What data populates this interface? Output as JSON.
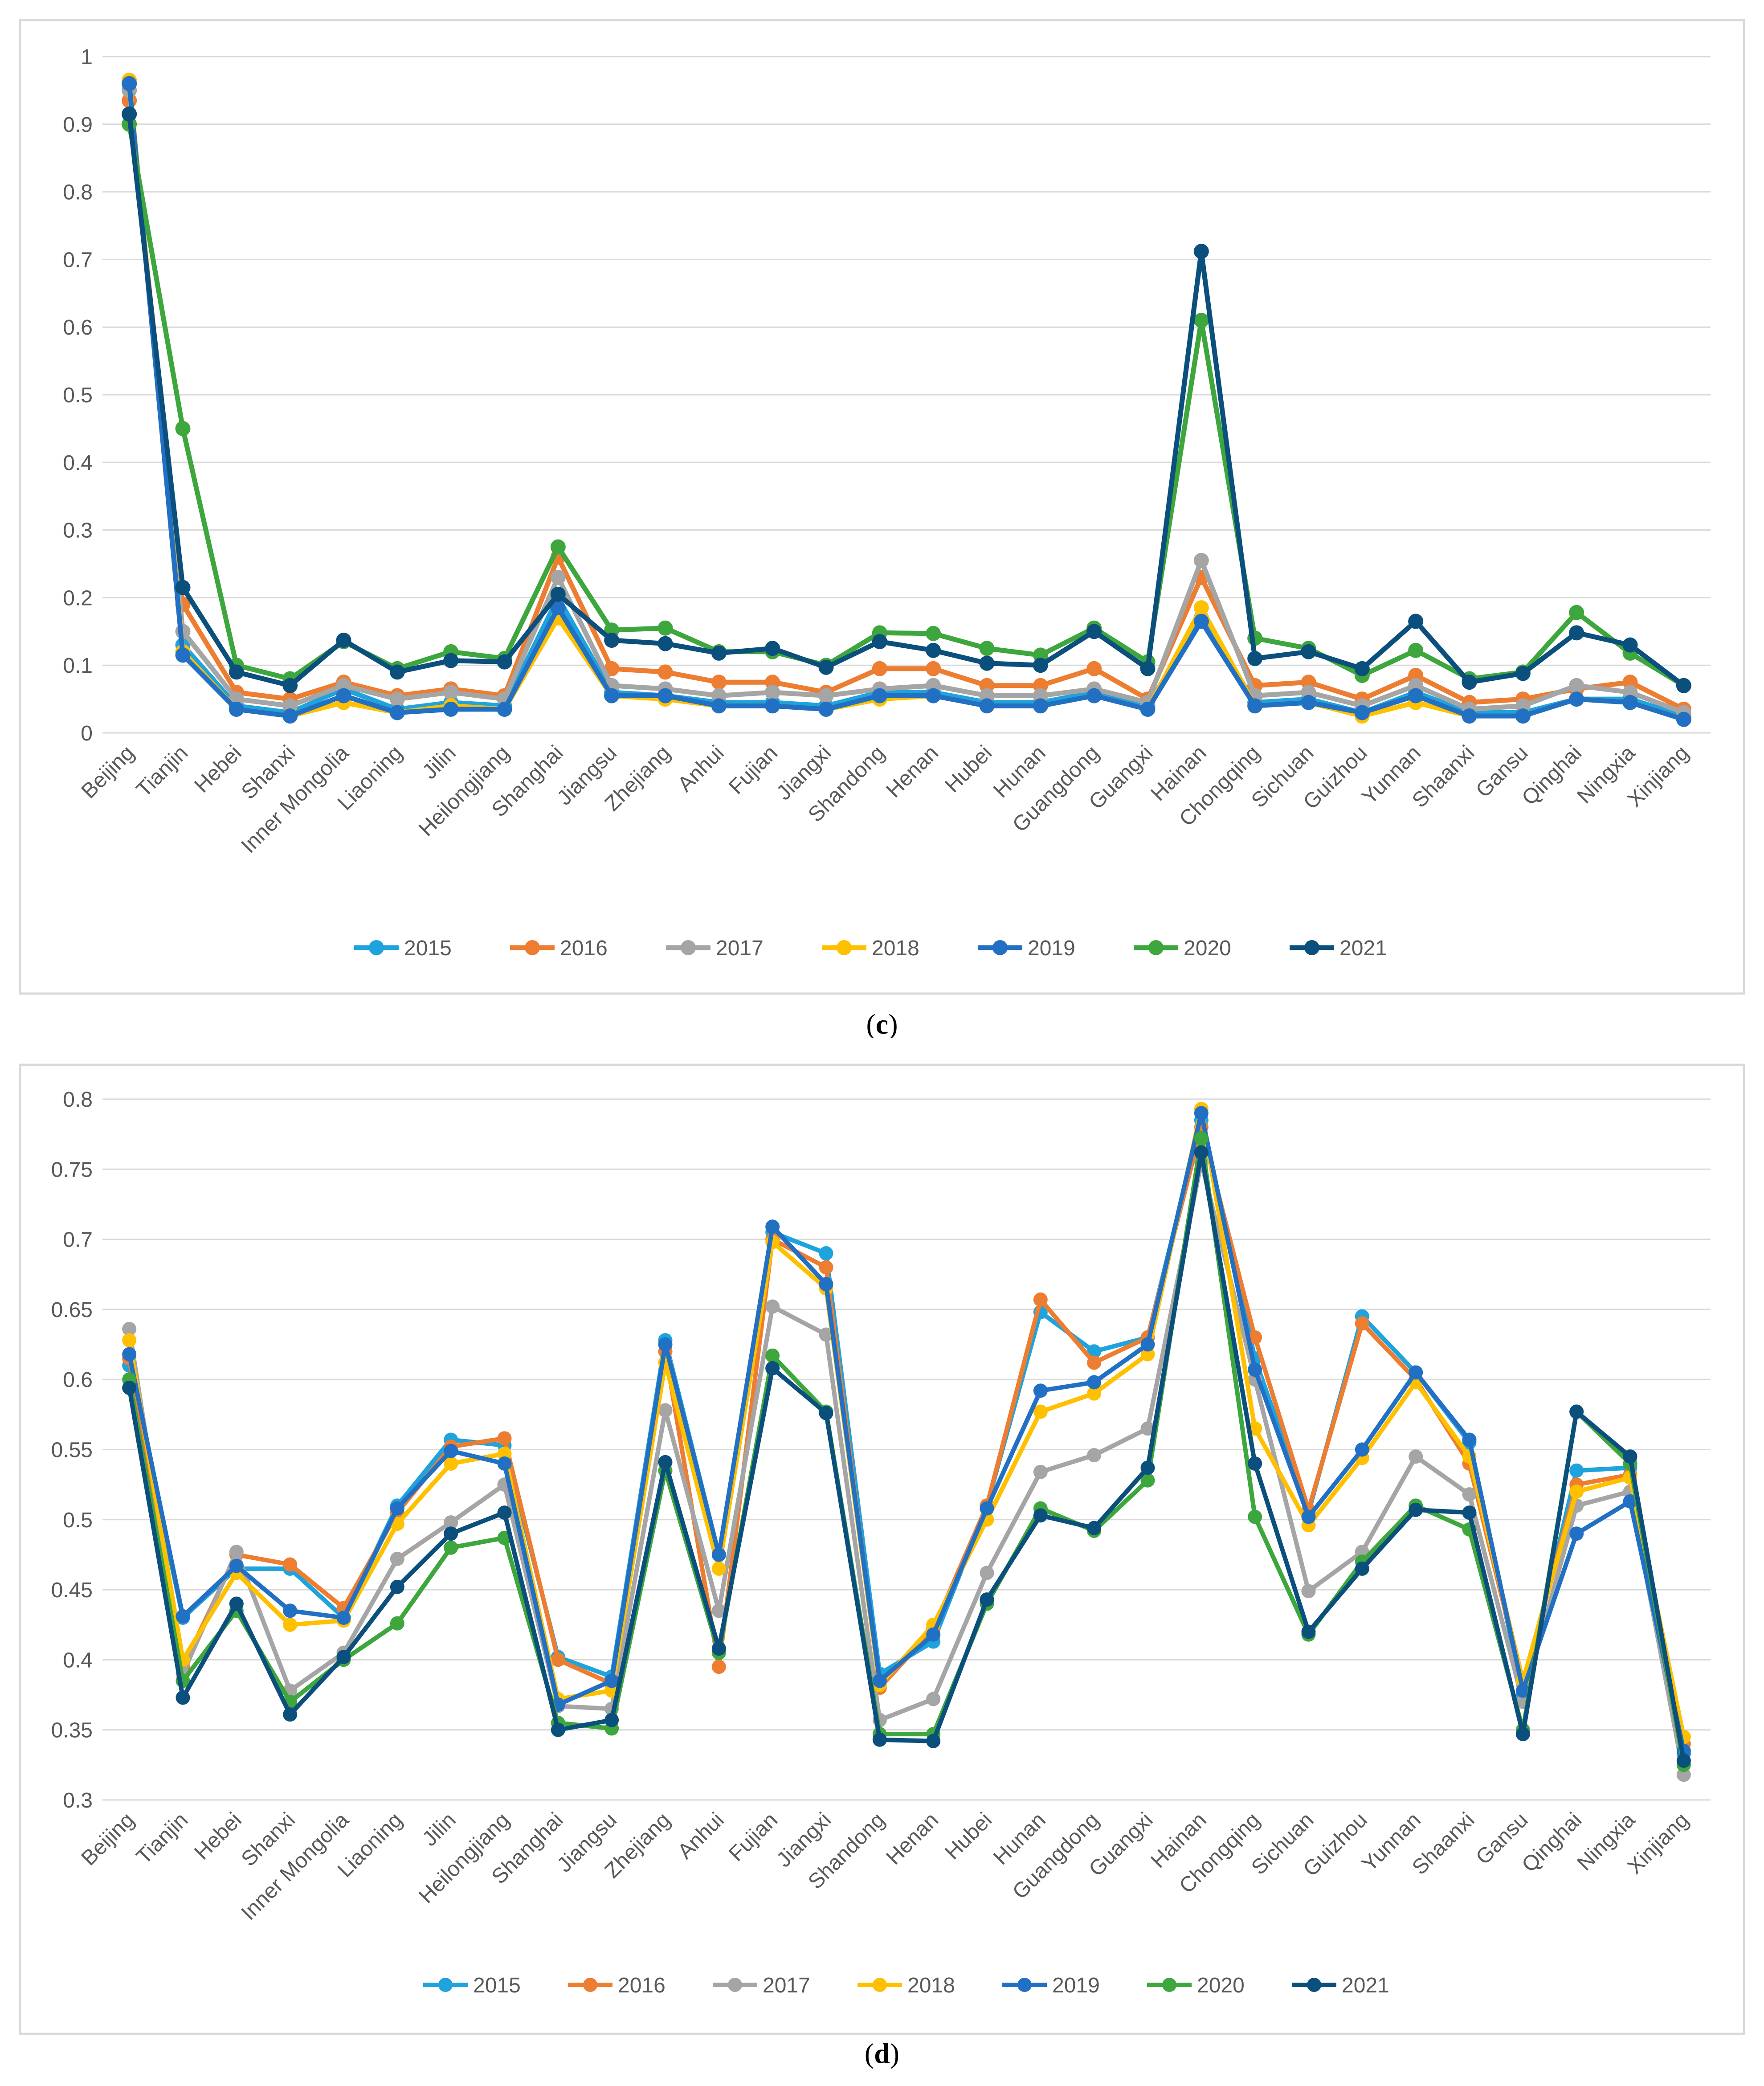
{
  "chart_data": [
    {
      "type": "line",
      "caption_letter": "c",
      "categories": [
        "Beijing",
        "Tianjin",
        "Hebei",
        "Shanxi",
        "Inner Mongolia",
        "Liaoning",
        "Jilin",
        "Heilongjiang",
        "Shanghai",
        "Jiangsu",
        "Zhejiang",
        "Anhui",
        "Fujian",
        "Jiangxi",
        "Shandong",
        "Henan",
        "Hubei",
        "Hunan",
        "Guangdong",
        "Guangxi",
        "Hainan",
        "Chongqing",
        "Sichuan",
        "Guizhou",
        "Yunnan",
        "Shaanxi",
        "Gansu",
        "Qinghai",
        "Ningxia",
        "Xinjiang"
      ],
      "ylim": [
        0,
        1
      ],
      "yticks": [
        {
          "v": 0,
          "label": "0"
        },
        {
          "v": 0.1,
          "label": "0.1"
        },
        {
          "v": 0.2,
          "label": "0.2"
        },
        {
          "v": 0.3,
          "label": "0.3"
        },
        {
          "v": 0.4,
          "label": "0.4"
        },
        {
          "v": 0.5,
          "label": "0.5"
        },
        {
          "v": 0.6,
          "label": "0.6"
        },
        {
          "v": 0.7,
          "label": "0.7"
        },
        {
          "v": 0.8,
          "label": "0.8"
        },
        {
          "v": 0.9,
          "label": "0.9"
        },
        {
          "v": 1,
          "label": "1"
        }
      ],
      "grid": true,
      "legend_position": "bottom",
      "series": [
        {
          "name": "2015",
          "color": "#1fa3dc",
          "values": [
            0.96,
            0.13,
            0.04,
            0.03,
            0.065,
            0.035,
            0.045,
            0.04,
            0.2,
            0.06,
            0.055,
            0.045,
            0.045,
            0.04,
            0.06,
            0.06,
            0.045,
            0.045,
            0.06,
            0.04,
            0.17,
            0.045,
            0.05,
            0.03,
            0.06,
            0.03,
            0.03,
            0.05,
            0.05,
            0.025
          ]
        },
        {
          "name": "2016",
          "color": "#ed7d31",
          "values": [
            0.935,
            0.19,
            0.06,
            0.05,
            0.075,
            0.055,
            0.065,
            0.055,
            0.26,
            0.095,
            0.09,
            0.075,
            0.075,
            0.06,
            0.095,
            0.095,
            0.07,
            0.07,
            0.095,
            0.05,
            0.23,
            0.07,
            0.075,
            0.05,
            0.085,
            0.045,
            0.05,
            0.065,
            0.075,
            0.035
          ]
        },
        {
          "name": "2017",
          "color": "#a5a5a5",
          "values": [
            0.95,
            0.15,
            0.05,
            0.04,
            0.07,
            0.05,
            0.06,
            0.05,
            0.23,
            0.07,
            0.065,
            0.055,
            0.06,
            0.055,
            0.065,
            0.07,
            0.055,
            0.055,
            0.065,
            0.045,
            0.255,
            0.055,
            0.06,
            0.04,
            0.07,
            0.035,
            0.04,
            0.07,
            0.06,
            0.03
          ]
        },
        {
          "name": "2018",
          "color": "#ffc000",
          "values": [
            0.965,
            0.12,
            0.035,
            0.025,
            0.045,
            0.03,
            0.04,
            0.035,
            0.17,
            0.055,
            0.05,
            0.04,
            0.04,
            0.035,
            0.05,
            0.055,
            0.04,
            0.04,
            0.055,
            0.035,
            0.185,
            0.04,
            0.045,
            0.025,
            0.045,
            0.025,
            0.025,
            0.05,
            0.045,
            0.02
          ]
        },
        {
          "name": "2019",
          "color": "#2170c4",
          "values": [
            0.96,
            0.115,
            0.035,
            0.025,
            0.055,
            0.03,
            0.035,
            0.035,
            0.185,
            0.055,
            0.055,
            0.04,
            0.04,
            0.035,
            0.055,
            0.055,
            0.04,
            0.04,
            0.055,
            0.035,
            0.165,
            0.04,
            0.045,
            0.03,
            0.055,
            0.025,
            0.025,
            0.05,
            0.045,
            0.02
          ]
        },
        {
          "name": "2020",
          "color": "#3da63d",
          "values": [
            0.9,
            0.45,
            0.1,
            0.08,
            0.135,
            0.095,
            0.12,
            0.11,
            0.275,
            0.152,
            0.155,
            0.12,
            0.12,
            0.1,
            0.148,
            0.147,
            0.125,
            0.115,
            0.155,
            0.105,
            0.61,
            0.14,
            0.125,
            0.085,
            0.122,
            0.08,
            0.09,
            0.178,
            0.118,
            0.07
          ]
        },
        {
          "name": "2021",
          "color": "#0b4f7c",
          "values": [
            0.915,
            0.215,
            0.09,
            0.07,
            0.137,
            0.09,
            0.107,
            0.105,
            0.205,
            0.137,
            0.132,
            0.118,
            0.125,
            0.097,
            0.135,
            0.122,
            0.103,
            0.1,
            0.15,
            0.095,
            0.712,
            0.11,
            0.12,
            0.095,
            0.165,
            0.075,
            0.088,
            0.148,
            0.13,
            0.07
          ]
        }
      ]
    },
    {
      "type": "line",
      "caption_letter": "d",
      "categories": [
        "Beijing",
        "Tianjin",
        "Hebei",
        "Shanxi",
        "Inner Mongolia",
        "Liaoning",
        "Jilin",
        "Heilongjiang",
        "Shanghai",
        "Jiangsu",
        "Zhejiang",
        "Anhui",
        "Fujian",
        "Jiangxi",
        "Shandong",
        "Henan",
        "Hubei",
        "Hunan",
        "Guangdong",
        "Guangxi",
        "Hainan",
        "Chongqing",
        "Sichuan",
        "Guizhou",
        "Yunnan",
        "Shaanxi",
        "Gansu",
        "Qinghai",
        "Ningxia",
        "Xinjiang"
      ],
      "ylim": [
        0.3,
        0.8
      ],
      "yticks": [
        {
          "v": 0.3,
          "label": "0.3"
        },
        {
          "v": 0.35,
          "label": "0.35"
        },
        {
          "v": 0.4,
          "label": "0.4"
        },
        {
          "v": 0.45,
          "label": "0.45"
        },
        {
          "v": 0.5,
          "label": "0.5"
        },
        {
          "v": 0.55,
          "label": "0.55"
        },
        {
          "v": 0.6,
          "label": "0.6"
        },
        {
          "v": 0.65,
          "label": "0.65"
        },
        {
          "v": 0.7,
          "label": "0.7"
        },
        {
          "v": 0.75,
          "label": "0.75"
        },
        {
          "v": 0.8,
          "label": "0.8"
        }
      ],
      "grid": true,
      "legend_position": "bottom",
      "series": [
        {
          "name": "2015",
          "color": "#1fa3dc",
          "values": [
            0.61,
            0.43,
            0.465,
            0.465,
            0.43,
            0.51,
            0.557,
            0.553,
            0.402,
            0.388,
            0.628,
            0.475,
            0.705,
            0.69,
            0.39,
            0.413,
            0.51,
            0.648,
            0.62,
            0.63,
            0.785,
            0.615,
            0.505,
            0.645,
            0.605,
            0.555,
            0.375,
            0.535,
            0.537,
            0.333
          ]
        },
        {
          "name": "2016",
          "color": "#ed7d31",
          "values": [
            0.615,
            0.395,
            0.475,
            0.468,
            0.437,
            0.505,
            0.552,
            0.558,
            0.4,
            0.383,
            0.62,
            0.395,
            0.7,
            0.68,
            0.38,
            0.422,
            0.51,
            0.657,
            0.612,
            0.63,
            0.78,
            0.63,
            0.507,
            0.64,
            0.6,
            0.54,
            0.383,
            0.525,
            0.532,
            0.34
          ]
        },
        {
          "name": "2017",
          "color": "#a5a5a5",
          "values": [
            0.636,
            0.39,
            0.477,
            0.378,
            0.405,
            0.472,
            0.498,
            0.525,
            0.367,
            0.365,
            0.578,
            0.435,
            0.652,
            0.632,
            0.357,
            0.372,
            0.462,
            0.534,
            0.546,
            0.565,
            0.755,
            0.6,
            0.449,
            0.477,
            0.545,
            0.518,
            0.37,
            0.51,
            0.52,
            0.318
          ]
        },
        {
          "name": "2018",
          "color": "#ffc000",
          "values": [
            0.628,
            0.4,
            0.462,
            0.425,
            0.428,
            0.497,
            0.54,
            0.547,
            0.372,
            0.378,
            0.612,
            0.465,
            0.698,
            0.665,
            0.382,
            0.425,
            0.5,
            0.577,
            0.59,
            0.618,
            0.793,
            0.565,
            0.496,
            0.544,
            0.598,
            0.545,
            0.385,
            0.52,
            0.53,
            0.345
          ]
        },
        {
          "name": "2019",
          "color": "#2170c4",
          "values": [
            0.618,
            0.431,
            0.467,
            0.435,
            0.43,
            0.508,
            0.549,
            0.54,
            0.368,
            0.385,
            0.625,
            0.475,
            0.709,
            0.668,
            0.385,
            0.418,
            0.508,
            0.592,
            0.598,
            0.625,
            0.79,
            0.607,
            0.502,
            0.55,
            0.605,
            0.557,
            0.378,
            0.49,
            0.513,
            0.335
          ]
        },
        {
          "name": "2020",
          "color": "#3da63d",
          "values": [
            0.6,
            0.385,
            0.435,
            0.37,
            0.4,
            0.426,
            0.48,
            0.487,
            0.355,
            0.351,
            0.535,
            0.405,
            0.617,
            0.577,
            0.347,
            0.347,
            0.44,
            0.508,
            0.492,
            0.528,
            0.772,
            0.502,
            0.418,
            0.47,
            0.51,
            0.493,
            0.35,
            0.577,
            0.54,
            0.325
          ]
        },
        {
          "name": "2021",
          "color": "#0b4f7c",
          "values": [
            0.594,
            0.373,
            0.44,
            0.361,
            0.402,
            0.452,
            0.49,
            0.505,
            0.35,
            0.357,
            0.541,
            0.408,
            0.608,
            0.576,
            0.343,
            0.342,
            0.443,
            0.503,
            0.494,
            0.537,
            0.762,
            0.54,
            0.42,
            0.465,
            0.507,
            0.505,
            0.347,
            0.577,
            0.545,
            0.328
          ]
        }
      ]
    }
  ]
}
